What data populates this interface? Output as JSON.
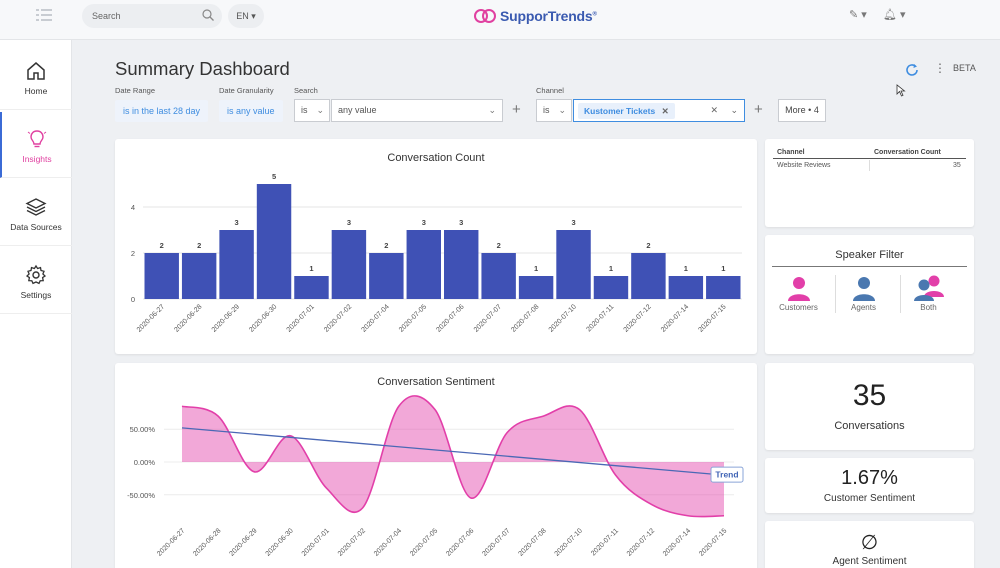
{
  "topbar": {
    "search_placeholder": "Search",
    "language": "EN ▾",
    "logo_text": "SupporTrends",
    "logo_reg": "®",
    "edit_icon": "✎ ▾",
    "bell_icon": "🔔︎ ▾"
  },
  "sidebar": {
    "items": [
      {
        "label": "Home",
        "icon": "home-icon"
      },
      {
        "label": "Insights",
        "icon": "lightbulb-icon"
      },
      {
        "label": "Data Sources",
        "icon": "layers-icon"
      },
      {
        "label": "Settings",
        "icon": "gear-icon"
      }
    ]
  },
  "header": {
    "title": "Summary Dashboard",
    "beta": "BETA"
  },
  "filters": {
    "date_range_label": "Date Range",
    "date_range_value": "is in the last 28 day",
    "granularity_label": "Date Granularity",
    "granularity_value": "is any value",
    "search_label": "Search",
    "search_op": "is",
    "search_value": "any value",
    "channel_label": "Channel",
    "channel_op": "is",
    "channel_value": "Kustomer Tickets",
    "more_button": "More • 4",
    "plus": "+"
  },
  "table": {
    "headers": [
      "Channel",
      "Conversation Count"
    ],
    "rows": [
      [
        "Website Reviews",
        "35"
      ]
    ]
  },
  "speaker_filter": {
    "title": "Speaker Filter",
    "options": [
      "Customers",
      "Agents",
      "Both"
    ]
  },
  "kpis": {
    "conversations_value": "35",
    "conversations_label": "Conversations",
    "customer_sentiment_value": "1.67%",
    "customer_sentiment_label": "Customer Sentiment",
    "agent_sentiment_value": "∅",
    "agent_sentiment_label": "Agent Sentiment"
  },
  "chart_data": [
    {
      "type": "bar",
      "title": "Conversation Count",
      "categories": [
        "2020-06-27",
        "2020-06-28",
        "2020-06-29",
        "2020-06-30",
        "2020-07-01",
        "2020-07-02",
        "2020-07-04",
        "2020-07-05",
        "2020-07-06",
        "2020-07-07",
        "2020-07-08",
        "2020-07-10",
        "2020-07-11",
        "2020-07-12",
        "2020-07-14",
        "2020-07-15"
      ],
      "values": [
        2,
        2,
        3,
        5,
        1,
        3,
        2,
        3,
        3,
        2,
        1,
        3,
        1,
        2,
        1,
        1
      ],
      "yticks": [
        0,
        2,
        4
      ],
      "ylim": [
        0,
        5
      ],
      "color": "#3f51b5"
    },
    {
      "type": "area",
      "title": "Conversation Sentiment",
      "categories": [
        "2020-06-27",
        "2020-06-28",
        "2020-06-29",
        "2020-06-30",
        "2020-07-01",
        "2020-07-02",
        "2020-07-04",
        "2020-07-05",
        "2020-07-06",
        "2020-07-07",
        "2020-07-08",
        "2020-07-10",
        "2020-07-11",
        "2020-07-12",
        "2020-07-14",
        "2020-07-15"
      ],
      "values": [
        85,
        70,
        -15,
        40,
        -40,
        -70,
        85,
        80,
        -55,
        45,
        70,
        80,
        -20,
        -65,
        -82,
        -82
      ],
      "yticks": [
        "50.00%",
        "0.00%",
        "-50.00%"
      ],
      "ytick_values": [
        50,
        0,
        -50
      ],
      "ylim": [
        -90,
        90
      ],
      "trend": {
        "label": "Trend",
        "start": 52,
        "end": -20
      },
      "color": "#e23fa9"
    }
  ]
}
